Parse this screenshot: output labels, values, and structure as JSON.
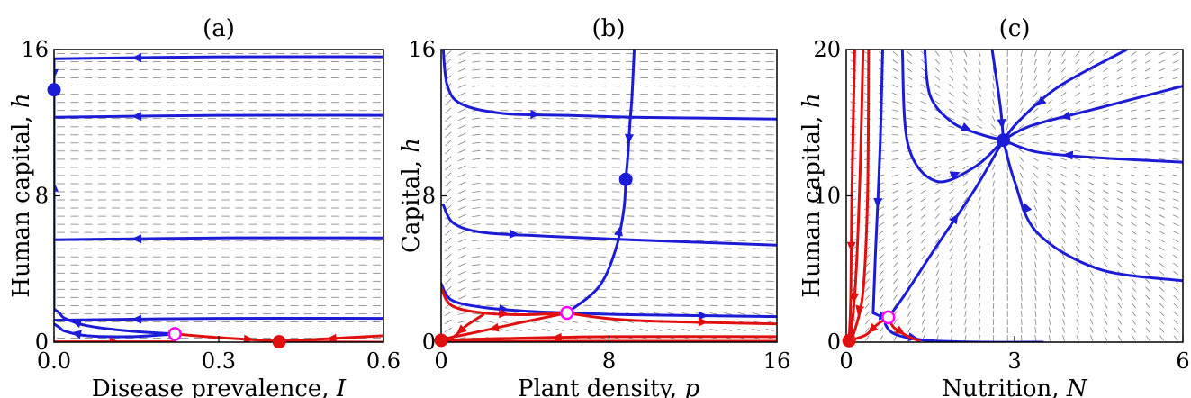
{
  "figure": {
    "panels": [
      {
        "id": "a",
        "title": "(a)",
        "xlabel": "Disease prevalence, ",
        "xvar": "I",
        "ylabel": "Human capital, ",
        "yvar": "h"
      },
      {
        "id": "b",
        "title": "(b)",
        "xlabel": "Plant density, ",
        "xvar": "p",
        "ylabel": "Capital, ",
        "yvar": "h"
      },
      {
        "id": "c",
        "title": "(c)",
        "xlabel": "Nutrition, ",
        "xvar": "N",
        "ylabel": "Human capital, ",
        "yvar": "h"
      }
    ],
    "colors": {
      "blue": "#1c1cd6",
      "red": "#e01010",
      "magenta": "#ff00ff",
      "field": "#808080"
    }
  },
  "chart_data": [
    {
      "type": "line",
      "title": "(a)",
      "xlabel": "Disease prevalence, I",
      "ylabel": "Human capital, h",
      "xlim": [
        0,
        0.6
      ],
      "ylim": [
        0,
        16
      ],
      "xticks": [
        0.0,
        0.3,
        0.6
      ],
      "xticklabels": [
        "0.0",
        "0.3",
        "0.6"
      ],
      "yticks": [
        0,
        8,
        16
      ],
      "yticklabels": [
        "0",
        "8",
        "16"
      ],
      "grid": false,
      "series": [
        {
          "color": "blue",
          "x": [
            0.6,
            0.3,
            0.0
          ],
          "y": [
            15.6,
            15.6,
            15.5
          ]
        },
        {
          "color": "blue",
          "x": [
            0.6,
            0.3,
            0.0
          ],
          "y": [
            12.4,
            12.4,
            12.3
          ]
        },
        {
          "color": "blue",
          "x": [
            0.6,
            0.3,
            0.0
          ],
          "y": [
            5.7,
            5.7,
            5.6
          ]
        },
        {
          "color": "blue",
          "x": [
            0.6,
            0.3,
            0.0
          ],
          "y": [
            1.3,
            1.3,
            1.2
          ]
        },
        {
          "color": "blue",
          "x": [
            0.0,
            0.0,
            0.0,
            0.0
          ],
          "y": [
            1.8,
            6.0,
            11.0,
            13.8
          ]
        },
        {
          "color": "blue",
          "x": [
            0.0,
            0.0
          ],
          "y": [
            15.5,
            13.8
          ]
        },
        {
          "color": "blue",
          "x": [
            0.22,
            0.14,
            0.06,
            0.02,
            0.01,
            0.0
          ],
          "y": [
            0.45,
            0.6,
            0.9,
            1.3,
            1.6,
            1.8
          ]
        },
        {
          "color": "blue",
          "x": [
            0.22,
            0.14,
            0.06,
            0.02,
            0.01,
            0.0
          ],
          "y": [
            0.45,
            0.3,
            0.35,
            0.6,
            0.8,
            1.0
          ]
        },
        {
          "color": "red",
          "x": [
            0.0,
            0.22
          ],
          "y": [
            0.02,
            0.02
          ]
        },
        {
          "color": "red",
          "x": [
            0.22,
            0.3,
            0.41
          ],
          "y": [
            0.45,
            0.25,
            0.05
          ]
        },
        {
          "color": "red",
          "x": [
            0.6,
            0.41
          ],
          "y": [
            0.35,
            0.05
          ]
        },
        {
          "color": "red",
          "x": [
            0.6,
            0.41
          ],
          "y": [
            0.0,
            0.02
          ]
        }
      ],
      "points": [
        {
          "x": 0.0,
          "y": 13.8,
          "kind": "stable",
          "color": "blue"
        },
        {
          "x": 0.41,
          "y": 0.02,
          "kind": "stable",
          "color": "red"
        },
        {
          "x": 0.22,
          "y": 0.45,
          "kind": "saddle",
          "color": "magenta"
        }
      ]
    },
    {
      "type": "line",
      "title": "(b)",
      "xlabel": "Plant density, p",
      "ylabel": "Capital, h",
      "xlim": [
        0,
        16
      ],
      "ylim": [
        0,
        16
      ],
      "xticks": [
        0,
        8,
        16
      ],
      "xticklabels": [
        "0",
        "8",
        "16"
      ],
      "yticks": [
        8,
        16
      ],
      "yticklabels": [
        "8",
        "16"
      ],
      "grid": false,
      "series": [
        {
          "color": "blue",
          "x": [
            0.1,
            0.3,
            1.0,
            3.0,
            6.0,
            9.2,
            16.0
          ],
          "y": [
            16.0,
            14.0,
            13.0,
            12.5,
            12.4,
            12.3,
            12.2
          ]
        },
        {
          "color": "blue",
          "x": [
            0.1,
            0.6,
            2.0,
            5.0,
            9.0,
            16.0
          ],
          "y": [
            7.5,
            6.5,
            6.0,
            5.8,
            5.6,
            5.3
          ]
        },
        {
          "color": "blue",
          "x": [
            0.0,
            0.5,
            2.0,
            4.0,
            6.0
          ],
          "y": [
            3.2,
            2.3,
            1.9,
            1.7,
            1.6
          ]
        },
        {
          "color": "blue",
          "x": [
            6.0,
            9.0,
            16.0
          ],
          "y": [
            1.6,
            1.5,
            1.4
          ]
        },
        {
          "color": "blue",
          "x": [
            9.2,
            9.1,
            9.0,
            8.9,
            8.8
          ],
          "y": [
            16.0,
            13.5,
            12.0,
            10.2,
            8.9
          ]
        },
        {
          "color": "blue",
          "x": [
            6.0,
            7.5,
            8.3,
            8.7,
            8.8
          ],
          "y": [
            1.6,
            3.0,
            5.0,
            7.2,
            8.9
          ]
        },
        {
          "color": "red",
          "x": [
            0.0,
            0.5,
            2.0,
            4.0,
            6.0
          ],
          "y": [
            3.0,
            2.0,
            1.6,
            1.5,
            1.6
          ]
        },
        {
          "color": "red",
          "x": [
            6.0,
            9.0,
            16.0
          ],
          "y": [
            1.6,
            1.2,
            1.0
          ]
        },
        {
          "color": "red",
          "x": [
            6.0,
            3.5,
            1.5,
            0.0
          ],
          "y": [
            1.6,
            1.0,
            0.5,
            0.15
          ]
        },
        {
          "color": "red",
          "x": [
            2.0,
            1.2,
            0.6,
            0.0
          ],
          "y": [
            1.5,
            0.9,
            0.3,
            0.1
          ]
        },
        {
          "color": "red",
          "x": [
            16.0,
            8.0,
            3.0,
            0.0
          ],
          "y": [
            0.3,
            0.3,
            0.2,
            0.1
          ]
        },
        {
          "color": "red",
          "x": [
            16.0,
            8.0,
            3.0,
            0.0
          ],
          "y": [
            0.05,
            0.05,
            0.05,
            0.05
          ]
        }
      ],
      "points": [
        {
          "x": 8.8,
          "y": 8.9,
          "kind": "stable",
          "color": "blue"
        },
        {
          "x": 0.0,
          "y": 0.1,
          "kind": "stable",
          "color": "red"
        },
        {
          "x": 6.0,
          "y": 1.6,
          "kind": "saddle",
          "color": "magenta"
        }
      ]
    },
    {
      "type": "line",
      "title": "(c)",
      "xlabel": "Nutrition, N",
      "ylabel": "Human capital, h",
      "xlim": [
        0,
        6
      ],
      "ylim": [
        0,
        20
      ],
      "xticks": [
        0,
        3,
        6
      ],
      "xticklabels": [
        "0",
        "3",
        "6"
      ],
      "yticks": [
        10,
        20
      ],
      "yticklabels": [
        "10",
        "20"
      ],
      "grid": false,
      "series": [
        {
          "color": "blue",
          "x": [
            0.75,
            1.0,
            1.6,
            2.3,
            2.8
          ],
          "y": [
            1.7,
            3.0,
            6.5,
            10.5,
            13.8
          ]
        },
        {
          "color": "blue",
          "x": [
            0.75,
            0.7,
            0.9,
            1.5,
            2.5,
            3.5
          ],
          "y": [
            1.7,
            1.2,
            0.5,
            0.1,
            0.0,
            0.0
          ]
        },
        {
          "color": "blue",
          "x": [
            0.65,
            0.6,
            0.52,
            0.48
          ],
          "y": [
            20.0,
            13.0,
            6.0,
            2.0
          ]
        },
        {
          "color": "blue",
          "x": [
            0.48,
            0.6,
            0.75
          ],
          "y": [
            2.0,
            1.8,
            1.7
          ]
        },
        {
          "color": "blue",
          "x": [
            6.0,
            4.5,
            3.3,
            2.8
          ],
          "y": [
            17.5,
            16.0,
            14.8,
            13.8
          ]
        },
        {
          "color": "blue",
          "x": [
            5.0,
            3.8,
            3.1,
            2.8
          ],
          "y": [
            20.0,
            17.5,
            15.2,
            13.8
          ]
        },
        {
          "color": "blue",
          "x": [
            6.0,
            4.5,
            3.4,
            2.8
          ],
          "y": [
            12.3,
            12.6,
            13.0,
            13.8
          ]
        },
        {
          "color": "blue",
          "x": [
            6.0,
            4.5,
            3.4,
            3.0,
            2.8
          ],
          "y": [
            4.2,
            5.0,
            7.5,
            11.0,
            13.8
          ]
        },
        {
          "color": "blue",
          "x": [
            1.4,
            1.5,
            1.9,
            2.4,
            2.8
          ],
          "y": [
            20.0,
            16.8,
            15.0,
            14.2,
            13.8
          ]
        },
        {
          "color": "blue",
          "x": [
            1.0,
            1.1,
            1.6,
            2.3,
            2.8
          ],
          "y": [
            20.0,
            13.5,
            11.0,
            12.0,
            13.8
          ]
        },
        {
          "color": "blue",
          "x": [
            2.6,
            2.75,
            2.8
          ],
          "y": [
            20.0,
            16.0,
            13.8
          ]
        },
        {
          "color": "red",
          "x": [
            0.15,
            0.1,
            0.08,
            0.05
          ],
          "y": [
            20.0,
            10.0,
            3.0,
            0.1
          ]
        },
        {
          "color": "red",
          "x": [
            0.3,
            0.25,
            0.18,
            0.1,
            0.05
          ],
          "y": [
            20.0,
            12.0,
            5.0,
            1.0,
            0.1
          ]
        },
        {
          "color": "red",
          "x": [
            0.4,
            0.38,
            0.3,
            0.15,
            0.05
          ],
          "y": [
            20.0,
            10.0,
            3.5,
            0.8,
            0.1
          ]
        },
        {
          "color": "red",
          "x": [
            0.75,
            0.55,
            0.35,
            0.05
          ],
          "y": [
            1.7,
            1.2,
            0.5,
            0.1
          ]
        },
        {
          "color": "red",
          "x": [
            0.75,
            0.85,
            1.1,
            1.3
          ],
          "y": [
            1.7,
            1.0,
            0.4,
            0.1
          ]
        }
      ],
      "points": [
        {
          "x": 2.8,
          "y": 13.8,
          "kind": "stable",
          "color": "blue"
        },
        {
          "x": 0.05,
          "y": 0.1,
          "kind": "stable",
          "color": "red"
        },
        {
          "x": 0.75,
          "y": 1.7,
          "kind": "saddle",
          "color": "magenta"
        }
      ]
    }
  ]
}
